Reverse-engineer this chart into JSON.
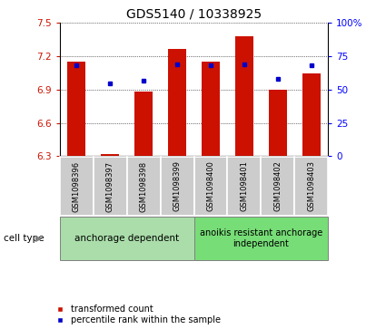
{
  "title": "GDS5140 / 10338925",
  "samples": [
    "GSM1098396",
    "GSM1098397",
    "GSM1098398",
    "GSM1098399",
    "GSM1098400",
    "GSM1098401",
    "GSM1098402",
    "GSM1098403"
  ],
  "red_values": [
    7.15,
    6.32,
    6.88,
    7.27,
    7.15,
    7.38,
    6.9,
    7.05
  ],
  "blue_values": [
    7.12,
    6.96,
    6.98,
    7.13,
    7.12,
    7.13,
    7.0,
    7.12
  ],
  "ymin": 6.3,
  "ymax": 7.5,
  "yticks": [
    6.3,
    6.6,
    6.9,
    7.2,
    7.5
  ],
  "right_yticks": [
    0,
    25,
    50,
    75,
    100
  ],
  "right_ytick_labels": [
    "0",
    "25",
    "50",
    "75",
    "100%"
  ],
  "group1_label": "anchorage dependent",
  "group2_label": "anoikis resistant anchorage\nindependent",
  "group1_indices": [
    0,
    1,
    2,
    3
  ],
  "group2_indices": [
    4,
    5,
    6,
    7
  ],
  "cell_type_label": "cell type",
  "legend1_label": "transformed count",
  "legend2_label": "percentile rank within the sample",
  "bar_color": "#cc1100",
  "dot_color": "#0000cc",
  "group1_bg": "#aaddaa",
  "group2_bg": "#77dd77",
  "sample_bg": "#cccccc",
  "title_fontsize": 10,
  "tick_fontsize": 7.5,
  "legend_fontsize": 7,
  "sample_fontsize": 6
}
